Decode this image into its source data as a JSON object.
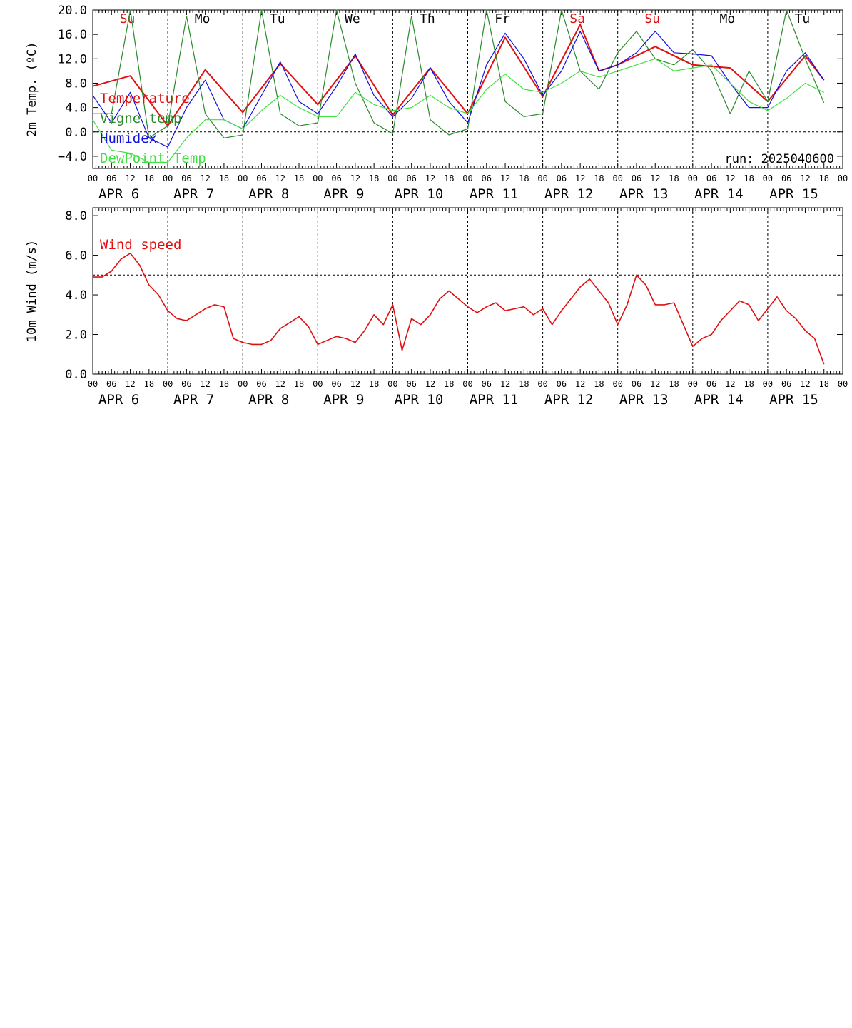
{
  "chart_data": [
    {
      "type": "line",
      "id": "temp",
      "ylabel": "2m Temp. (ºC)",
      "ylim": [
        -6,
        20
      ],
      "yticks": [
        -4,
        0,
        4,
        8,
        12,
        16,
        20
      ],
      "ytick_labels": [
        "−4.0",
        "0.0",
        "4.0",
        "8.0",
        "12.0",
        "16.0",
        "20.0"
      ],
      "zero_line": 0,
      "annotation": "run: 2025040600",
      "weekdays": [
        "Su",
        "Mo",
        "Tu",
        "We",
        "Th",
        "Fr",
        "Sa",
        "Su",
        "Mo",
        "Tu"
      ],
      "weekday_colors": [
        "#e01010",
        "#000000",
        "#000000",
        "#000000",
        "#000000",
        "#000000",
        "#e01010",
        "#e01010",
        "#000000",
        "#000000"
      ],
      "series": [
        {
          "name": "Temperature",
          "color": "#e01010",
          "width": 2,
          "x": [
            0,
            12,
            24,
            36,
            48,
            60,
            72,
            84,
            96,
            108,
            120,
            132,
            144,
            156,
            162,
            168,
            180,
            192,
            204,
            216,
            228,
            234
          ],
          "y": [
            7.5,
            9.2,
            1.0,
            10.2,
            3.2,
            11.2,
            4.5,
            12.5,
            2.8,
            10.5,
            3.0,
            15.5,
            5.8,
            17.6,
            10.0,
            11.0,
            14.0,
            11.0,
            10.5,
            5.0,
            12.5,
            8.5
          ]
        },
        {
          "name": "Vigne temp",
          "color": "#2a8a2a",
          "width": 1.2,
          "x": [
            0,
            6,
            12,
            18,
            24,
            30,
            36,
            42,
            48,
            54,
            60,
            66,
            72,
            78,
            84,
            90,
            96,
            102,
            108,
            114,
            120,
            126,
            132,
            138,
            144,
            150,
            156,
            162,
            168,
            174,
            180,
            186,
            192,
            198,
            204,
            210,
            216,
            222,
            228,
            234
          ],
          "y": [
            3.0,
            3.0,
            20.0,
            -1.0,
            1.0,
            19.0,
            3.0,
            -1.0,
            -0.5,
            20.0,
            3.0,
            1.0,
            1.5,
            20.0,
            8.0,
            1.5,
            -0.3,
            19.0,
            2.0,
            -0.5,
            0.5,
            20.0,
            5.0,
            2.5,
            3.0,
            20.0,
            10.0,
            7.0,
            13.0,
            16.5,
            12.0,
            11.0,
            13.5,
            10.0,
            3.0,
            10.0,
            5.0,
            20.0,
            12.0,
            4.8
          ]
        },
        {
          "name": "Humidex",
          "color": "#1010e0",
          "width": 1.2,
          "x": [
            0,
            6,
            12,
            18,
            24,
            30,
            36,
            42,
            48,
            54,
            60,
            66,
            72,
            78,
            84,
            90,
            96,
            102,
            108,
            114,
            120,
            126,
            132,
            138,
            144,
            150,
            156,
            162,
            168,
            174,
            180,
            186,
            192,
            198,
            204,
            210,
            216,
            222,
            228,
            234
          ],
          "y": [
            6.0,
            1.5,
            6.5,
            -1.0,
            -2.5,
            4.0,
            8.5,
            2.0,
            0.5,
            6.0,
            11.5,
            5.0,
            3.0,
            7.5,
            12.8,
            6.0,
            2.5,
            5.5,
            10.5,
            5.0,
            1.5,
            11.0,
            16.2,
            12.0,
            6.0,
            10.0,
            16.5,
            10.0,
            11.0,
            13.0,
            16.5,
            13.0,
            12.8,
            12.5,
            8.0,
            4.0,
            4.0,
            10.0,
            13.0,
            8.5
          ]
        },
        {
          "name": "DewPoint Temp",
          "color": "#40e040",
          "width": 1.2,
          "x": [
            0,
            6,
            12,
            18,
            24,
            30,
            36,
            42,
            48,
            54,
            60,
            66,
            72,
            78,
            84,
            90,
            96,
            102,
            108,
            114,
            120,
            126,
            132,
            138,
            144,
            150,
            156,
            162,
            168,
            174,
            180,
            186,
            192,
            198,
            204,
            210,
            216,
            222,
            228,
            234
          ],
          "y": [
            2.0,
            -3.0,
            -3.5,
            -5.0,
            -5.0,
            -1.0,
            2.0,
            2.0,
            0.5,
            3.5,
            6.0,
            4.0,
            2.5,
            2.5,
            6.5,
            4.5,
            3.5,
            4.0,
            6.0,
            4.0,
            3.0,
            7.0,
            9.5,
            7.0,
            6.5,
            8.0,
            10.0,
            9.0,
            10.0,
            11.0,
            12.0,
            10.0,
            10.5,
            11.0,
            8.0,
            5.0,
            3.5,
            5.5,
            8.0,
            6.5
          ]
        }
      ]
    },
    {
      "type": "line",
      "id": "wind",
      "ylabel": "10m Wind (m/s)",
      "ylim": [
        0,
        8.4
      ],
      "yticks": [
        0,
        2,
        4,
        6,
        8
      ],
      "ytick_labels": [
        "0.0",
        "2.0",
        "4.0",
        "6.0",
        "8.0"
      ],
      "ref_line": 5,
      "series": [
        {
          "name": "Wind speed",
          "color": "#e01010",
          "width": 1.6,
          "x": [
            0,
            3,
            6,
            9,
            12,
            15,
            18,
            21,
            24,
            27,
            30,
            33,
            36,
            39,
            42,
            45,
            48,
            51,
            54,
            57,
            60,
            63,
            66,
            69,
            72,
            75,
            78,
            81,
            84,
            87,
            90,
            93,
            96,
            99,
            102,
            105,
            108,
            111,
            114,
            117,
            120,
            123,
            126,
            129,
            132,
            135,
            138,
            141,
            144,
            147,
            150,
            153,
            156,
            159,
            162,
            165,
            168,
            171,
            174,
            177,
            180,
            183,
            186,
            189,
            192,
            195,
            198,
            201,
            204,
            207,
            210,
            213,
            216,
            219,
            222,
            225,
            228,
            231,
            234
          ],
          "y": [
            4.9,
            4.9,
            5.2,
            5.8,
            6.1,
            5.5,
            4.5,
            4.0,
            3.2,
            2.8,
            2.7,
            3.0,
            3.3,
            3.5,
            3.4,
            1.8,
            1.6,
            1.5,
            1.5,
            1.7,
            2.3,
            2.6,
            2.9,
            2.4,
            1.5,
            1.7,
            1.9,
            1.8,
            1.6,
            2.2,
            3.0,
            2.5,
            3.5,
            1.2,
            2.8,
            2.5,
            3.0,
            3.8,
            4.2,
            3.8,
            3.4,
            3.1,
            3.4,
            3.6,
            3.2,
            3.3,
            3.4,
            3.0,
            3.3,
            2.5,
            3.2,
            3.8,
            4.4,
            4.8,
            4.2,
            3.6,
            2.5,
            3.5,
            5.0,
            4.5,
            3.5,
            3.5,
            3.6,
            2.5,
            1.4,
            1.8,
            2.0,
            2.7,
            3.2,
            3.7,
            3.5,
            2.7,
            3.3,
            3.9,
            3.2,
            2.8,
            2.2,
            1.8,
            0.5
          ]
        }
      ]
    }
  ]
}
